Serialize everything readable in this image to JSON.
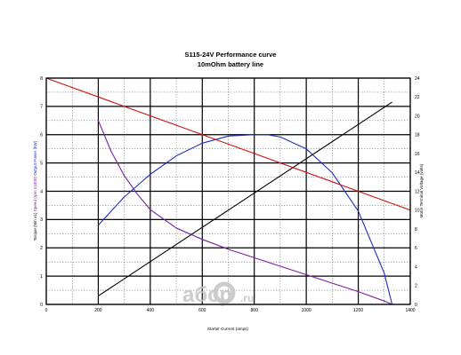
{
  "chart_data": {
    "type": "line",
    "title": "S115-24V Performance  curve",
    "subtitle": "10mOhm battery line",
    "xlabel": "Starter Current (amps)",
    "ylabel_left_parts": [
      {
        "text": "Torque (Nm x1)",
        "color": "#000000"
      },
      {
        "text": "  Speed (rpm x1000)",
        "color": "#7a1fa2"
      },
      {
        "text": "  Output Power (kW)",
        "color": "#1f2dbd"
      }
    ],
    "ylabel_right": "Motor Terminal Voltage (volts)",
    "ylabel_right_color": "#cc1111",
    "xlim": [
      0,
      1400
    ],
    "ylim_left": [
      0,
      8
    ],
    "ylim_right": [
      0,
      24
    ],
    "x_ticks": [
      "0",
      "200",
      "400",
      "600",
      "800",
      "1000",
      "1200",
      "1400"
    ],
    "y_ticks_left": [
      "0",
      "1",
      "2",
      "3",
      "4",
      "5",
      "6",
      "7",
      "8"
    ],
    "y_ticks_right": [
      "0",
      "2",
      "4",
      "6",
      "8",
      "10",
      "12",
      "14",
      "16",
      "18",
      "20",
      "22",
      "24"
    ],
    "grid": true,
    "series": [
      {
        "key": "torque",
        "axis": "left",
        "color": "#000000",
        "x": [
          200,
          1330
        ],
        "y": [
          0.3,
          7.15
        ]
      },
      {
        "key": "speed",
        "axis": "left",
        "color": "#7a1fa2",
        "x": [
          200,
          250,
          300,
          350,
          400,
          500,
          600,
          700,
          800,
          900,
          1000,
          1100,
          1200,
          1300,
          1330
        ],
        "y": [
          6.5,
          5.4,
          4.55,
          3.9,
          3.35,
          2.7,
          2.3,
          1.95,
          1.65,
          1.35,
          1.05,
          0.75,
          0.45,
          0.12,
          0.0
        ]
      },
      {
        "key": "power",
        "axis": "left",
        "color": "#1f2dbd",
        "x": [
          200,
          300,
          400,
          500,
          600,
          700,
          800,
          850,
          900,
          1000,
          1100,
          1200,
          1300,
          1330
        ],
        "y": [
          2.8,
          3.8,
          4.6,
          5.25,
          5.7,
          5.95,
          6.0,
          6.0,
          5.92,
          5.5,
          4.65,
          3.3,
          1.1,
          0.0
        ]
      },
      {
        "key": "voltage",
        "axis": "right",
        "color": "#cc1111",
        "x": [
          0,
          1400
        ],
        "y": [
          24,
          10
        ]
      }
    ]
  },
  "watermark": {
    "brand": "aбcp",
    "suffix": ".ru"
  }
}
